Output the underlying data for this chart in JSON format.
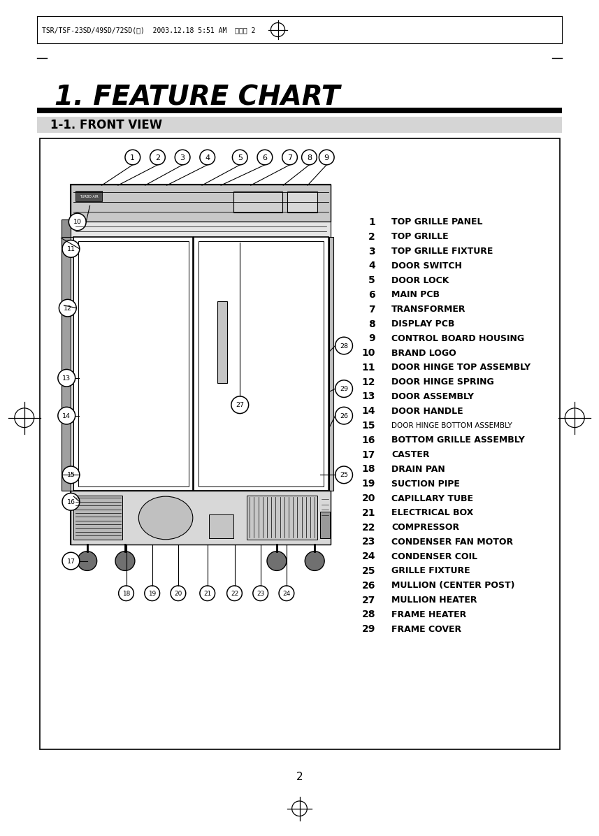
{
  "title": "1. FEATURE CHART",
  "subtitle": "1-1. FRONT VIEW",
  "header_text": "TSR/TSF-23SD/49SD/72SD(엹)  2003.12.18 5:51 AM  페이지 2",
  "page_number": "2",
  "background_color": "#ffffff",
  "parts": [
    {
      "num": 1,
      "label": "TOP GRILLE PANEL",
      "bold": true,
      "small": false
    },
    {
      "num": 2,
      "label": "TOP GRILLE",
      "bold": true,
      "small": false
    },
    {
      "num": 3,
      "label": "TOP GRILLE FIXTURE",
      "bold": true,
      "small": false
    },
    {
      "num": 4,
      "label": "DOOR SWITCH",
      "bold": true,
      "small": false
    },
    {
      "num": 5,
      "label": "DOOR LOCK",
      "bold": true,
      "small": false
    },
    {
      "num": 6,
      "label": "MAIN PCB",
      "bold": true,
      "small": false
    },
    {
      "num": 7,
      "label": "TRANSFORMER",
      "bold": true,
      "small": false
    },
    {
      "num": 8,
      "label": "DISPLAY PCB",
      "bold": true,
      "small": false
    },
    {
      "num": 9,
      "label": "CONTROL BOARD HOUSING",
      "bold": true,
      "small": false
    },
    {
      "num": 10,
      "label": "BRAND LOGO",
      "bold": true,
      "small": false
    },
    {
      "num": 11,
      "label": "DOOR HINGE TOP ASSEMBLY",
      "bold": true,
      "small": false
    },
    {
      "num": 12,
      "label": "DOOR HINGE SPRING",
      "bold": true,
      "small": false
    },
    {
      "num": 13,
      "label": "DOOR ASSEMBLY",
      "bold": true,
      "small": false
    },
    {
      "num": 14,
      "label": "DOOR HANDLE",
      "bold": true,
      "small": false
    },
    {
      "num": 15,
      "label": "DOOR HINGE BOTTOM ASSEMBLY",
      "bold": false,
      "small": true
    },
    {
      "num": 16,
      "label": "BOTTOM GRILLE ASSEMBLY",
      "bold": true,
      "small": false
    },
    {
      "num": 17,
      "label": "CASTER",
      "bold": true,
      "small": false
    },
    {
      "num": 18,
      "label": "DRAIN PAN",
      "bold": true,
      "small": false
    },
    {
      "num": 19,
      "label": "SUCTION PIPE",
      "bold": true,
      "small": false
    },
    {
      "num": 20,
      "label": "CAPILLARY TUBE",
      "bold": true,
      "small": false
    },
    {
      "num": 21,
      "label": "ELECTRICAL BOX",
      "bold": true,
      "small": false
    },
    {
      "num": 22,
      "label": "COMPRESSOR",
      "bold": true,
      "small": false
    },
    {
      "num": 23,
      "label": "CONDENSER FAN MOTOR",
      "bold": true,
      "small": false
    },
    {
      "num": 24,
      "label": "CONDENSER COIL",
      "bold": true,
      "small": false
    },
    {
      "num": 25,
      "label": "GRILLE FIXTURE",
      "bold": true,
      "small": false
    },
    {
      "num": 26,
      "label": "MULLION (CENTER POST)",
      "bold": true,
      "small": false
    },
    {
      "num": 27,
      "label": "MULLION HEATER",
      "bold": true,
      "small": false
    },
    {
      "num": 28,
      "label": "FRAME HEATER",
      "bold": true,
      "small": false
    },
    {
      "num": 29,
      "label": "FRAME COVER",
      "bold": true,
      "small": false
    }
  ]
}
